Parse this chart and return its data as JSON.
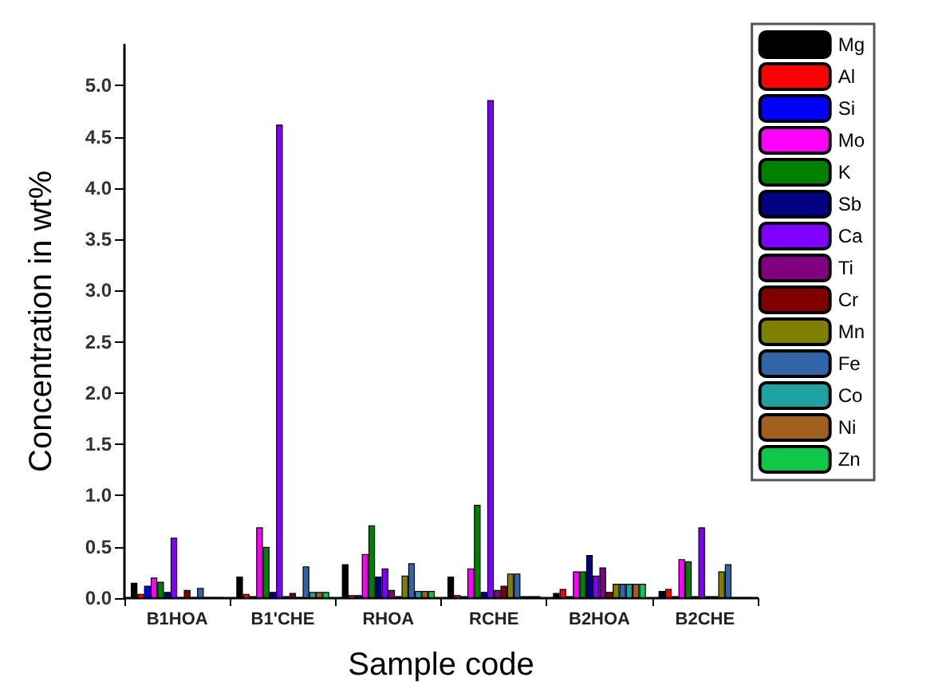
{
  "chart_data": {
    "type": "bar",
    "xlabel": "Sample code",
    "ylabel": "Concentration in wt%",
    "categories": [
      "B1HOA",
      "B1'CHE",
      "RHOA",
      "RCHE",
      "B2HOA",
      "B2CHE"
    ],
    "ylim": [
      0,
      5.4
    ],
    "yticks": [
      {
        "value": 0,
        "label": "0.0"
      },
      {
        "value": 0.5,
        "label": "0.5"
      },
      {
        "value": 1,
        "label": "1.0"
      },
      {
        "value": 1.5,
        "label": "1.5"
      },
      {
        "value": 2,
        "label": "2.0"
      },
      {
        "value": 2.5,
        "label": "2.5"
      },
      {
        "value": 3,
        "label": "3.0"
      },
      {
        "value": 3.5,
        "label": "3.5"
      },
      {
        "value": 4,
        "label": "4.0"
      },
      {
        "value": 4.5,
        "label": "4.5"
      },
      {
        "value": 5,
        "label": "5.0"
      }
    ],
    "legend": "top right",
    "grid": false,
    "series": [
      {
        "name": "Mg",
        "color": "#000000",
        "values": [
          0.15,
          0.21,
          0.33,
          0.21,
          0.05,
          0.07
        ]
      },
      {
        "name": "Al",
        "color": "#ff0000",
        "values": [
          0.04,
          0.04,
          0.03,
          0.03,
          0.09,
          0.09
        ]
      },
      {
        "name": "Si",
        "color": "#0000ff",
        "values": [
          0.12,
          0.02,
          0.03,
          0.02,
          0.02,
          0.02
        ]
      },
      {
        "name": "Mo",
        "color": "#ff00ff",
        "values": [
          0.2,
          0.69,
          0.43,
          0.29,
          0.26,
          0.38
        ]
      },
      {
        "name": "K",
        "color": "#008000",
        "values": [
          0.16,
          0.5,
          0.71,
          0.91,
          0.26,
          0.36
        ]
      },
      {
        "name": "Sb",
        "color": "#000080",
        "values": [
          0.06,
          0.06,
          0.21,
          0.06,
          0.42,
          0.02
        ]
      },
      {
        "name": "Ca",
        "color": "#8000ff",
        "values": [
          0.59,
          4.62,
          0.29,
          4.86,
          0.22,
          0.69
        ]
      },
      {
        "name": "Ti",
        "color": "#800080",
        "values": [
          0.01,
          0.02,
          0.08,
          0.08,
          0.3,
          0.02
        ]
      },
      {
        "name": "Cr",
        "color": "#800000",
        "values": [
          0.08,
          0.05,
          0.02,
          0.12,
          0.06,
          0.02
        ]
      },
      {
        "name": "Mn",
        "color": "#808000",
        "values": [
          0.01,
          0.01,
          0.22,
          0.24,
          0.14,
          0.26
        ]
      },
      {
        "name": "Fe",
        "color": "#3264a8",
        "values": [
          0.1,
          0.31,
          0.34,
          0.24,
          0.14,
          0.33
        ]
      },
      {
        "name": "Co",
        "color": "#20a0a0",
        "values": [
          0.01,
          0.06,
          0.07,
          0.02,
          0.14,
          0.01
        ]
      },
      {
        "name": "Ni",
        "color": "#a06020",
        "values": [
          0.01,
          0.06,
          0.07,
          0.02,
          0.14,
          0.01
        ]
      },
      {
        "name": "Zn",
        "color": "#10c848",
        "values": [
          0.01,
          0.06,
          0.07,
          0.02,
          0.14,
          0.01
        ]
      }
    ]
  }
}
